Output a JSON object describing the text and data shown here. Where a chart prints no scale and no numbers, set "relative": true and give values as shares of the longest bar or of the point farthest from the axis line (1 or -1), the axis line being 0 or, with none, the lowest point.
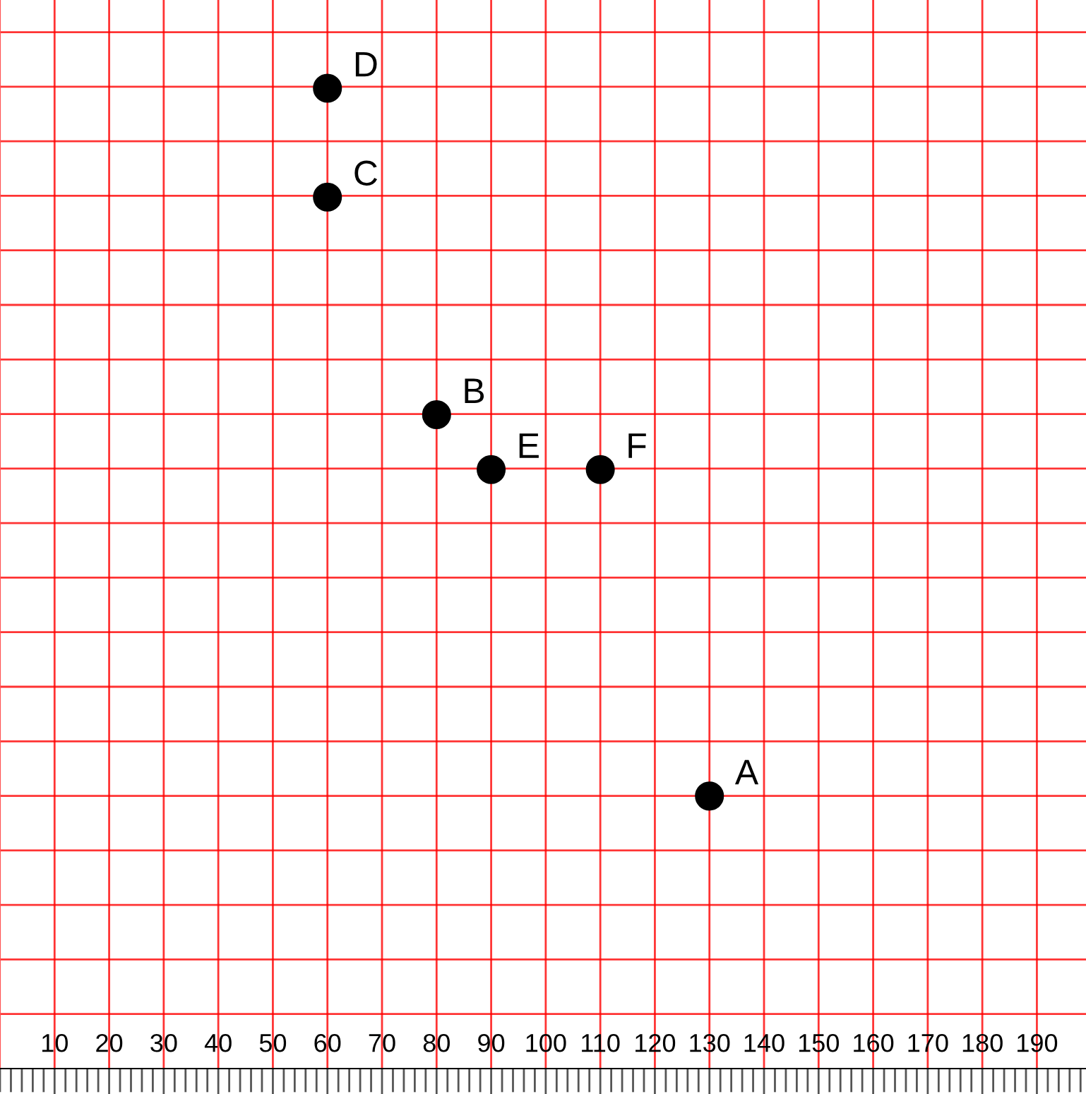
{
  "chart_data": {
    "type": "scatter",
    "relative": true,
    "x": [
      130,
      80,
      60,
      60,
      90,
      110
    ],
    "values": [
      0.278,
      0.667,
      0.889,
      1,
      0.611,
      0.611
    ],
    "color": "#000000",
    "marker": "circle",
    "xlim": [
      0,
      199
    ],
    "xticks": [
      10,
      20,
      30,
      40,
      50,
      60,
      70,
      80,
      90,
      100,
      110,
      120,
      130,
      140,
      150,
      160,
      170,
      180,
      190
    ],
    "grid": true,
    "annotations": [
      {
        "text": "A",
        "x": 130,
        "y": 0.278
      },
      {
        "text": "B",
        "x": 80,
        "y": 0.667
      },
      {
        "text": "C",
        "x": 60,
        "y": 0.889
      },
      {
        "text": "D",
        "x": 60,
        "y": 1
      },
      {
        "text": "E",
        "x": 90,
        "y": 0.611
      },
      {
        "text": "F",
        "x": 110,
        "y": 0.611
      }
    ]
  }
}
